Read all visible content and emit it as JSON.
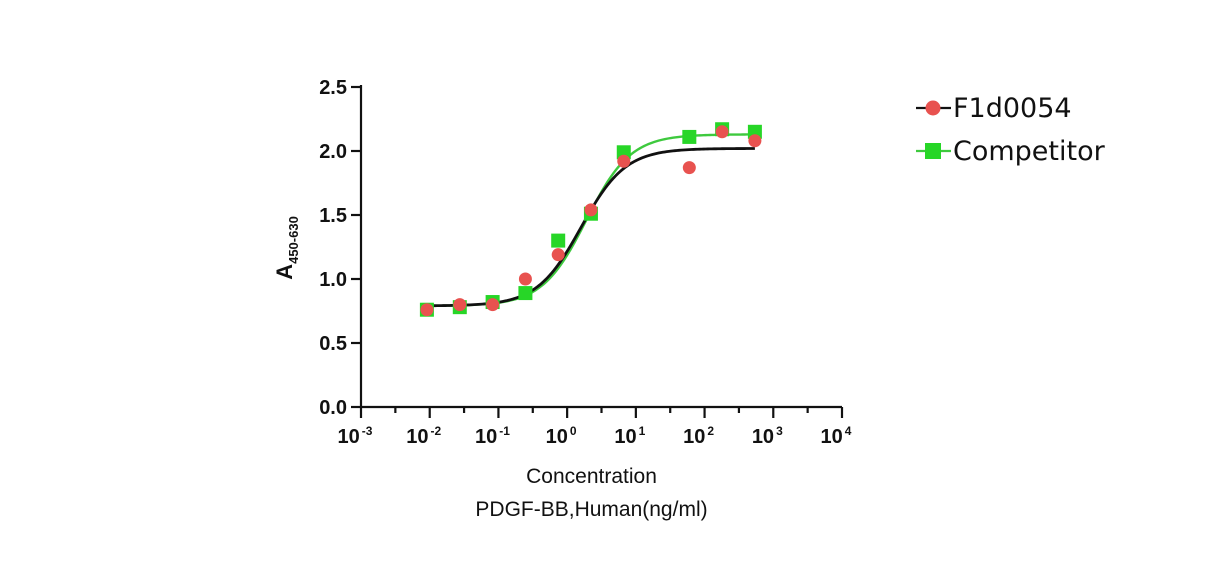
{
  "chart_data": {
    "type": "scatter",
    "title": "",
    "ylabel": {
      "main": "A",
      "subscript": "450-630"
    },
    "xlabel_line1": "Concentration",
    "xlabel_line2": "PDGF-BB,Human(ng/ml)",
    "x_scale": "log10",
    "xlim": [
      0.001,
      10000
    ],
    "ylim": [
      0,
      2.5
    ],
    "x_ticks": [
      {
        "base": "10",
        "exp": "-3"
      },
      {
        "base": "10",
        "exp": "-2"
      },
      {
        "base": "10",
        "exp": "-1"
      },
      {
        "base": "10",
        "exp": "0"
      },
      {
        "base": "10",
        "exp": "1"
      },
      {
        "base": "10",
        "exp": "2"
      },
      {
        "base": "10",
        "exp": "3"
      },
      {
        "base": "10",
        "exp": "4"
      }
    ],
    "y_ticks": [
      "0.0",
      "0.5",
      "1.0",
      "1.5",
      "2.0",
      "2.5"
    ],
    "legend_position": "top-right",
    "series": [
      {
        "name": "F1d0054",
        "marker": "circle",
        "color": "#e8524f",
        "line_color": "#111111",
        "x": [
          0.0091,
          0.0274,
          0.0823,
          0.247,
          0.741,
          2.22,
          6.67,
          60,
          180,
          540
        ],
        "y": [
          0.76,
          0.8,
          0.8,
          1.0,
          1.19,
          1.54,
          1.92,
          1.87,
          2.15,
          2.08
        ],
        "fit": {
          "bottom": 0.79,
          "top": 2.02,
          "ec50": 1.6,
          "hill": 1.35
        }
      },
      {
        "name": "Competitor",
        "marker": "square",
        "color": "#27d627",
        "line_color": "#3ec93e",
        "x": [
          0.0091,
          0.0274,
          0.0823,
          0.247,
          0.741,
          2.22,
          6.67,
          60,
          180,
          540
        ],
        "y": [
          0.76,
          0.78,
          0.82,
          0.89,
          1.3,
          1.51,
          1.99,
          2.11,
          2.17,
          2.15
        ],
        "fit": {
          "bottom": 0.79,
          "top": 2.13,
          "ec50": 1.9,
          "hill": 1.35
        }
      }
    ]
  }
}
